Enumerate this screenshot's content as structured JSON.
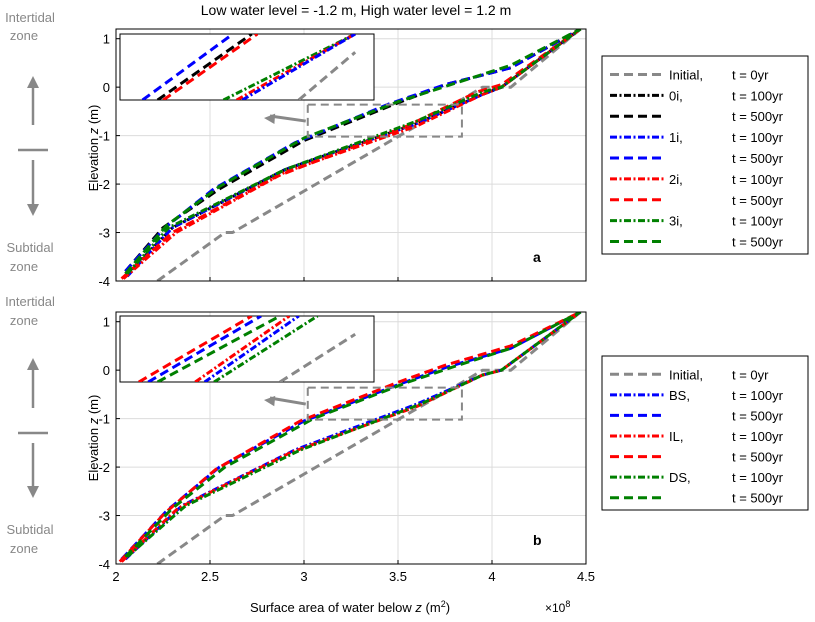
{
  "figure_title": "Low water level = -1.2 m, High water level = 1.2 m",
  "shared": {
    "xlabel_main": "Surface area of water below ",
    "xlabel_var": "z",
    "xlabel_unit": " (m",
    "xlabel_sup": "2",
    "xlabel_close": ")",
    "x_exponent_base": "×10",
    "x_exponent_power": "8",
    "ylabel_main": "Elevation ",
    "ylabel_var": "z",
    "ylabel_unit": " (m)",
    "zone_top": [
      "Intertidal",
      "zone"
    ],
    "zone_bottom": [
      "Subtidal",
      "zone"
    ],
    "xticks": [
      "2",
      "2.5",
      "3",
      "3.5",
      "4",
      "4.5"
    ],
    "yticks": [
      "1",
      "0",
      "-1",
      "-2",
      "-3",
      "-4"
    ]
  },
  "colors": {
    "initial": "#888888",
    "s0": "#000000",
    "s1": "#0000ff",
    "s2": "#ff0000",
    "s3": "#008000",
    "BS": "#0000ff",
    "IL": "#ff0000",
    "DS": "#008000",
    "arrow": "#888888",
    "grid": "#dcdcdc"
  },
  "chart_data": [
    {
      "type": "line",
      "panel_label": "a",
      "xlim": [
        2,
        4.5
      ],
      "ylim": [
        -4,
        1.2
      ],
      "x_scale": "1e8",
      "grid": true,
      "legend_position": "right",
      "legend": [
        {
          "name": "Initial,",
          "time": "t = 0yr",
          "color_key": "initial",
          "dash": "dash"
        },
        {
          "name": "0i,",
          "time": "t = 100yr",
          "color_key": "s0",
          "dash": "dashdot"
        },
        {
          "name": "",
          "time": "t = 500yr",
          "color_key": "s0",
          "dash": "dash"
        },
        {
          "name": "1i,",
          "time": "t = 100yr",
          "color_key": "s1",
          "dash": "dashdot"
        },
        {
          "name": "",
          "time": "t = 500yr",
          "color_key": "s1",
          "dash": "dash"
        },
        {
          "name": "2i,",
          "time": "t = 100yr",
          "color_key": "s2",
          "dash": "dashdot"
        },
        {
          "name": "",
          "time": "t = 500yr",
          "color_key": "s2",
          "dash": "dash"
        },
        {
          "name": "3i,",
          "time": "t = 100yr",
          "color_key": "s3",
          "dash": "dashdot"
        },
        {
          "name": "",
          "time": "t = 500yr",
          "color_key": "s3",
          "dash": "dash"
        }
      ],
      "series": [
        {
          "color_key": "initial",
          "dash": "dash",
          "points": [
            [
              2.22,
              -4
            ],
            [
              2.58,
              -3
            ],
            [
              2.62,
              -3
            ],
            [
              3.82,
              -0.3
            ],
            [
              3.95,
              0
            ],
            [
              4.1,
              0
            ],
            [
              4.47,
              1.2
            ]
          ]
        },
        {
          "color_key": "s0",
          "dash": "dashdot",
          "points": [
            [
              2.05,
              -3.9
            ],
            [
              2.3,
              -2.9
            ],
            [
              2.9,
              -1.7
            ],
            [
              3.6,
              -0.75
            ],
            [
              3.95,
              -0.15
            ],
            [
              4.05,
              0
            ],
            [
              4.47,
              1.2
            ]
          ]
        },
        {
          "color_key": "s0",
          "dash": "dash",
          "points": [
            [
              2.05,
              -3.8
            ],
            [
              2.25,
              -2.9
            ],
            [
              2.55,
              -2.1
            ],
            [
              3.0,
              -1.1
            ],
            [
              3.45,
              -0.4
            ],
            [
              3.75,
              0.05
            ],
            [
              4.1,
              0.4
            ],
            [
              4.47,
              1.2
            ]
          ]
        },
        {
          "color_key": "s1",
          "dash": "dashdot",
          "points": [
            [
              2.06,
              -3.9
            ],
            [
              2.3,
              -2.9
            ],
            [
              2.9,
              -1.7
            ],
            [
              3.6,
              -0.75
            ],
            [
              3.95,
              -0.15
            ],
            [
              4.05,
              0
            ],
            [
              4.47,
              1.2
            ]
          ]
        },
        {
          "color_key": "s1",
          "dash": "dash",
          "points": [
            [
              2.05,
              -3.8
            ],
            [
              2.26,
              -2.9
            ],
            [
              2.52,
              -2.1
            ],
            [
              2.95,
              -1.15
            ],
            [
              3.45,
              -0.35
            ],
            [
              3.75,
              0.05
            ],
            [
              4.1,
              0.4
            ],
            [
              4.47,
              1.2
            ]
          ]
        },
        {
          "color_key": "s2",
          "dash": "dashdot",
          "points": [
            [
              2.04,
              -3.95
            ],
            [
              2.32,
              -3.0
            ],
            [
              2.9,
              -1.75
            ],
            [
              3.6,
              -0.8
            ],
            [
              3.95,
              -0.15
            ],
            [
              4.05,
              0
            ],
            [
              4.47,
              1.2
            ]
          ]
        },
        {
          "color_key": "s2",
          "dash": "dash",
          "points": [
            [
              2.03,
              -3.95
            ],
            [
              2.3,
              -3.0
            ],
            [
              2.85,
              -1.85
            ],
            [
              3.55,
              -0.8
            ],
            [
              3.92,
              -0.1
            ],
            [
              4.05,
              0.05
            ],
            [
              4.47,
              1.2
            ]
          ]
        },
        {
          "color_key": "s3",
          "dash": "dashdot",
          "points": [
            [
              2.06,
              -3.85
            ],
            [
              2.28,
              -2.9
            ],
            [
              2.9,
              -1.7
            ],
            [
              3.6,
              -0.7
            ],
            [
              3.95,
              -0.1
            ],
            [
              4.05,
              0
            ],
            [
              4.47,
              1.2
            ]
          ]
        },
        {
          "color_key": "s3",
          "dash": "dash",
          "points": [
            [
              2.05,
              -3.85
            ],
            [
              2.27,
              -2.85
            ],
            [
              2.55,
              -2.05
            ],
            [
              3.0,
              -1.05
            ],
            [
              3.5,
              -0.3
            ],
            [
              3.78,
              0.05
            ],
            [
              4.1,
              0.45
            ],
            [
              4.47,
              1.2
            ]
          ]
        }
      ],
      "inset": {
        "xlim": [
          3.02,
          3.84
        ],
        "ylim": [
          -1.02,
          -0.36
        ],
        "lines": [
          {
            "color_key": "s0",
            "dash": "dash",
            "from": [
              2.3,
              -4.3
            ],
            "to": [
              2.8,
              0.4
            ]
          },
          {
            "color_key": "s1",
            "dash": "dash",
            "from": [
              2.22,
              -4.3
            ],
            "to": [
              2.7,
              0.4
            ]
          },
          {
            "color_key": "s2",
            "dash": "dash",
            "from": [
              2.33,
              -4.3
            ],
            "to": [
              2.83,
              0.4
            ]
          },
          {
            "color_key": "s3",
            "dash": "dashdot",
            "from": [
              2.65,
              -4.3
            ],
            "to": [
              3.35,
              0.4
            ]
          },
          {
            "color_key": "s2",
            "dash": "dashdot",
            "from": [
              2.72,
              -4.3
            ],
            "to": [
              3.35,
              0.4
            ]
          },
          {
            "color_key": "s1",
            "dash": "dashdot",
            "from": [
              2.75,
              -4.3
            ],
            "to": [
              3.35,
              0.4
            ]
          },
          {
            "color_key": "initial",
            "dash": "dash",
            "from": [
              3.05,
              -4.3
            ],
            "to": [
              3.35,
              -0.9
            ]
          }
        ]
      }
    },
    {
      "type": "line",
      "panel_label": "b",
      "xlim": [
        2,
        4.5
      ],
      "ylim": [
        -4,
        1.2
      ],
      "x_scale": "1e8",
      "grid": true,
      "legend_position": "right",
      "legend": [
        {
          "name": "Initial,",
          "time": "t = 0yr",
          "color_key": "initial",
          "dash": "dash"
        },
        {
          "name": "BS,",
          "time": "t = 100yr",
          "color_key": "BS",
          "dash": "dashdot"
        },
        {
          "name": "",
          "time": "t = 500yr",
          "color_key": "BS",
          "dash": "dash"
        },
        {
          "name": "IL,",
          "time": "t = 100yr",
          "color_key": "IL",
          "dash": "dashdot"
        },
        {
          "name": "",
          "time": "t = 500yr",
          "color_key": "IL",
          "dash": "dash"
        },
        {
          "name": "DS,",
          "time": "t = 100yr",
          "color_key": "DS",
          "dash": "dashdot"
        },
        {
          "name": "",
          "time": "t = 500yr",
          "color_key": "DS",
          "dash": "dash"
        }
      ],
      "series": [
        {
          "color_key": "initial",
          "dash": "dash",
          "points": [
            [
              2.22,
              -4
            ],
            [
              2.58,
              -3
            ],
            [
              2.62,
              -3
            ],
            [
              3.82,
              -0.3
            ],
            [
              3.95,
              0
            ],
            [
              4.1,
              0
            ],
            [
              4.47,
              1.2
            ]
          ]
        },
        {
          "color_key": "BS",
          "dash": "dashdot",
          "points": [
            [
              2.05,
              -3.9
            ],
            [
              2.35,
              -2.8
            ],
            [
              2.95,
              -1.65
            ],
            [
              3.6,
              -0.7
            ],
            [
              3.95,
              -0.1
            ],
            [
              4.05,
              0
            ],
            [
              4.47,
              1.2
            ]
          ]
        },
        {
          "color_key": "BS",
          "dash": "dash",
          "points": [
            [
              2.03,
              -3.9
            ],
            [
              2.27,
              -2.9
            ],
            [
              2.55,
              -2.0
            ],
            [
              3.0,
              -1.05
            ],
            [
              3.5,
              -0.3
            ],
            [
              3.75,
              0.05
            ],
            [
              4.1,
              0.45
            ],
            [
              4.47,
              1.2
            ]
          ]
        },
        {
          "color_key": "IL",
          "dash": "dashdot",
          "points": [
            [
              2.03,
              -3.95
            ],
            [
              2.33,
              -2.85
            ],
            [
              2.93,
              -1.7
            ],
            [
              3.6,
              -0.75
            ],
            [
              3.95,
              -0.1
            ],
            [
              4.05,
              0
            ],
            [
              4.47,
              1.2
            ]
          ]
        },
        {
          "color_key": "IL",
          "dash": "dash",
          "points": [
            [
              2.02,
              -3.95
            ],
            [
              2.26,
              -2.95
            ],
            [
              2.53,
              -2.05
            ],
            [
              2.98,
              -1.05
            ],
            [
              3.5,
              -0.25
            ],
            [
              3.75,
              0.1
            ],
            [
              4.1,
              0.5
            ],
            [
              4.47,
              1.2
            ]
          ]
        },
        {
          "color_key": "DS",
          "dash": "dashdot",
          "points": [
            [
              2.06,
              -3.85
            ],
            [
              2.37,
              -2.8
            ],
            [
              2.98,
              -1.65
            ],
            [
              3.62,
              -0.7
            ],
            [
              3.95,
              -0.1
            ],
            [
              4.05,
              0
            ],
            [
              4.47,
              1.2
            ]
          ]
        },
        {
          "color_key": "DS",
          "dash": "dash",
          "points": [
            [
              2.05,
              -3.85
            ],
            [
              2.3,
              -2.85
            ],
            [
              2.58,
              -2.0
            ],
            [
              3.05,
              -1.0
            ],
            [
              3.55,
              -0.25
            ],
            [
              3.78,
              0.05
            ],
            [
              4.1,
              0.45
            ],
            [
              4.47,
              1.2
            ]
          ]
        }
      ],
      "inset": {
        "xlim": [
          3.02,
          3.84
        ],
        "ylim": [
          -1.02,
          -0.36
        ],
        "lines": [
          {
            "color_key": "IL",
            "dash": "dash",
            "from": [
              2.2,
              -4.3
            ],
            "to": [
              2.8,
              0.4
            ]
          },
          {
            "color_key": "BS",
            "dash": "dash",
            "from": [
              2.25,
              -4.3
            ],
            "to": [
              2.85,
              0.4
            ]
          },
          {
            "color_key": "DS",
            "dash": "dash",
            "from": [
              2.3,
              -4.3
            ],
            "to": [
              2.95,
              0.4
            ]
          },
          {
            "color_key": "IL",
            "dash": "dashdot",
            "from": [
              2.5,
              -4.3
            ],
            "to": [
              3.0,
              0.4
            ]
          },
          {
            "color_key": "BS",
            "dash": "dashdot",
            "from": [
              2.55,
              -4.3
            ],
            "to": [
              3.05,
              0.4
            ]
          },
          {
            "color_key": "DS",
            "dash": "dashdot",
            "from": [
              2.6,
              -4.3
            ],
            "to": [
              3.15,
              0.4
            ]
          },
          {
            "color_key": "initial",
            "dash": "dash",
            "from": [
              2.95,
              -4.3
            ],
            "to": [
              3.35,
              -0.9
            ]
          }
        ]
      }
    }
  ]
}
